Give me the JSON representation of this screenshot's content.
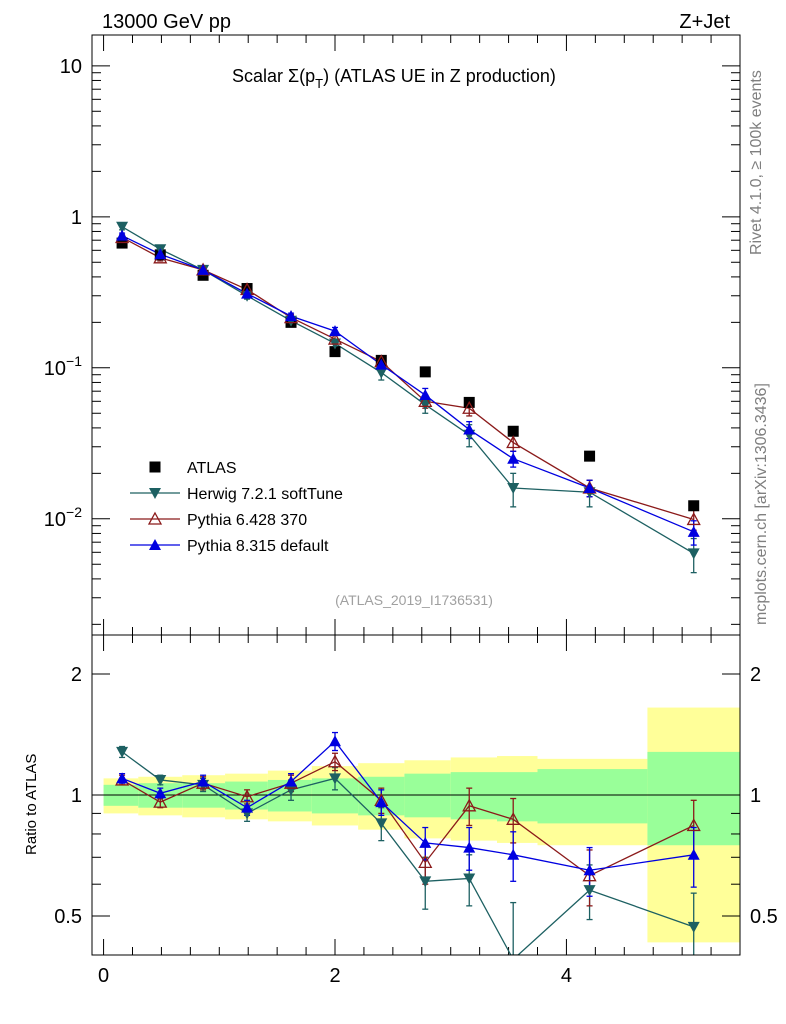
{
  "header": {
    "left": "13000 GeV pp",
    "right": "Z+Jet"
  },
  "side_labels": {
    "top": "Rivet 4.1.0, ≥ 100k events",
    "bottom": "mcplots.cern.ch [arXiv:1306.3436]"
  },
  "colors": {
    "atlas": "#000000",
    "herwig": "#1d6062",
    "pythia6": "#8b1a1a",
    "pythia8": "#0000e0",
    "band_inner": "#99ff99",
    "band_outer": "#ffff99"
  },
  "chart_data": [
    {
      "type": "scatter",
      "name": "main",
      "title": {
        "prefix": "Scalar Σ(p",
        "sub": "T",
        "suffix": ") (ATLAS UE in Z production)"
      },
      "reference": "(ATLAS_2019_I1736531)",
      "yscale": "log",
      "ylim": [
        0.0017,
        16
      ],
      "xlim": [
        -0.1,
        5.5
      ],
      "yticks": [
        {
          "v": 10,
          "base": "10",
          "exp": ""
        },
        {
          "v": 1,
          "base": "1",
          "exp": ""
        },
        {
          "v": 0.1,
          "base": "10",
          "exp": "−1"
        },
        {
          "v": 0.01,
          "base": "10",
          "exp": "−2"
        }
      ],
      "legend": {
        "position": "lower-left",
        "entries": [
          {
            "key": "atlas",
            "label": "ATLAS"
          },
          {
            "key": "herwig",
            "label": "Herwig 7.2.1 softTune"
          },
          {
            "key": "pythia6",
            "label": "Pythia 6.428 370"
          },
          {
            "key": "pythia8",
            "label": "Pythia 8.315 default"
          }
        ]
      },
      "x": [
        0.16,
        0.49,
        0.86,
        1.24,
        1.62,
        2.0,
        2.4,
        2.78,
        3.16,
        3.54,
        4.2,
        5.1
      ],
      "series": [
        {
          "key": "atlas",
          "name": "ATLAS",
          "values": [
            0.67,
            0.56,
            0.41,
            0.335,
            0.2,
            0.128,
            0.112,
            0.094,
            0.059,
            0.038,
            0.026,
            0.0122
          ]
        },
        {
          "key": "herwig",
          "name": "Herwig 7.2.1 softTune",
          "values": [
            0.86,
            0.61,
            0.445,
            0.3,
            0.205,
            0.145,
            0.093,
            0.057,
            0.036,
            0.016,
            0.015,
            0.0059
          ],
          "errors": [
            0.04,
            0.03,
            0.02,
            0.015,
            0.012,
            0.01,
            0.01,
            0.007,
            0.006,
            0.004,
            0.003,
            0.0015
          ]
        },
        {
          "key": "pythia6",
          "name": "Pythia 6.428 370",
          "values": [
            0.73,
            0.535,
            0.445,
            0.33,
            0.215,
            0.155,
            0.11,
            0.06,
            0.054,
            0.032,
            0.016,
            0.0099
          ],
          "errors": [
            0.03,
            0.025,
            0.02,
            0.015,
            0.01,
            0.01,
            0.008,
            0.006,
            0.006,
            0.004,
            0.002,
            0.0015
          ]
        },
        {
          "key": "pythia8",
          "name": "Pythia 8.315 default",
          "values": [
            0.75,
            0.565,
            0.445,
            0.31,
            0.22,
            0.175,
            0.105,
            0.066,
            0.039,
            0.025,
            0.016,
            0.0082
          ],
          "errors": [
            0.03,
            0.025,
            0.02,
            0.015,
            0.01,
            0.01,
            0.008,
            0.007,
            0.005,
            0.003,
            0.002,
            0.0015
          ]
        }
      ]
    },
    {
      "type": "scatter",
      "name": "ratio",
      "ylabel": "Ratio to ATLAS",
      "yscale": "log",
      "ylim": [
        0.4,
        2.5
      ],
      "xlim": [
        -0.1,
        5.5
      ],
      "yticks": [
        {
          "v": 2,
          "label": "2"
        },
        {
          "v": 1,
          "label": "1"
        },
        {
          "v": 0.5,
          "label": "0.5"
        }
      ],
      "xticks": [
        {
          "v": 0,
          "label": "0"
        },
        {
          "v": 2,
          "label": "2"
        },
        {
          "v": 4,
          "label": "4"
        }
      ],
      "reference_line": 1,
      "band_edges": [
        0.0,
        0.3,
        0.68,
        1.05,
        1.42,
        1.8,
        2.2,
        2.6,
        3.0,
        3.4,
        3.75,
        4.7,
        5.5
      ],
      "band_inner": [
        [
          0.94,
          1.06
        ],
        [
          0.93,
          1.07
        ],
        [
          0.93,
          1.07
        ],
        [
          0.92,
          1.08
        ],
        [
          0.91,
          1.09
        ],
        [
          0.9,
          1.1
        ],
        [
          0.89,
          1.11
        ],
        [
          0.88,
          1.13
        ],
        [
          0.87,
          1.14
        ],
        [
          0.86,
          1.14
        ],
        [
          0.85,
          1.16
        ],
        [
          0.75,
          1.28
        ]
      ],
      "band_outer": [
        [
          0.9,
          1.1
        ],
        [
          0.89,
          1.11
        ],
        [
          0.88,
          1.12
        ],
        [
          0.87,
          1.13
        ],
        [
          0.86,
          1.15
        ],
        [
          0.84,
          1.18
        ],
        [
          0.82,
          1.2
        ],
        [
          0.78,
          1.22
        ],
        [
          0.77,
          1.24
        ],
        [
          0.76,
          1.25
        ],
        [
          0.75,
          1.23
        ],
        [
          0.43,
          1.65
        ]
      ],
      "x": [
        0.16,
        0.49,
        0.86,
        1.24,
        1.62,
        2.0,
        2.4,
        2.78,
        3.16,
        3.54,
        4.2,
        5.1
      ],
      "series": [
        {
          "key": "herwig",
          "name": "Herwig 7.2.1 softTune",
          "values": [
            1.28,
            1.09,
            1.06,
            0.9,
            1.03,
            1.1,
            0.85,
            0.61,
            0.62,
            0.39,
            0.58,
            0.47
          ],
          "errors": [
            0.04,
            0.03,
            0.04,
            0.04,
            0.06,
            0.07,
            0.08,
            0.09,
            0.09,
            0.15,
            0.09,
            0.1
          ]
        },
        {
          "key": "pythia6",
          "name": "Pythia 6.428 370",
          "values": [
            1.09,
            0.96,
            1.07,
            0.99,
            1.07,
            1.21,
            0.97,
            0.68,
            0.94,
            0.87,
            0.63,
            0.84
          ],
          "errors": [
            0.03,
            0.03,
            0.04,
            0.04,
            0.05,
            0.06,
            0.07,
            0.08,
            0.1,
            0.11,
            0.1,
            0.13
          ]
        },
        {
          "key": "pythia8",
          "name": "Pythia 8.315 default",
          "values": [
            1.1,
            1.01,
            1.08,
            0.93,
            1.08,
            1.36,
            0.96,
            0.76,
            0.74,
            0.71,
            0.65,
            0.71
          ],
          "errors": [
            0.03,
            0.03,
            0.04,
            0.04,
            0.05,
            0.07,
            0.07,
            0.07,
            0.09,
            0.1,
            0.09,
            0.12
          ]
        }
      ]
    }
  ]
}
